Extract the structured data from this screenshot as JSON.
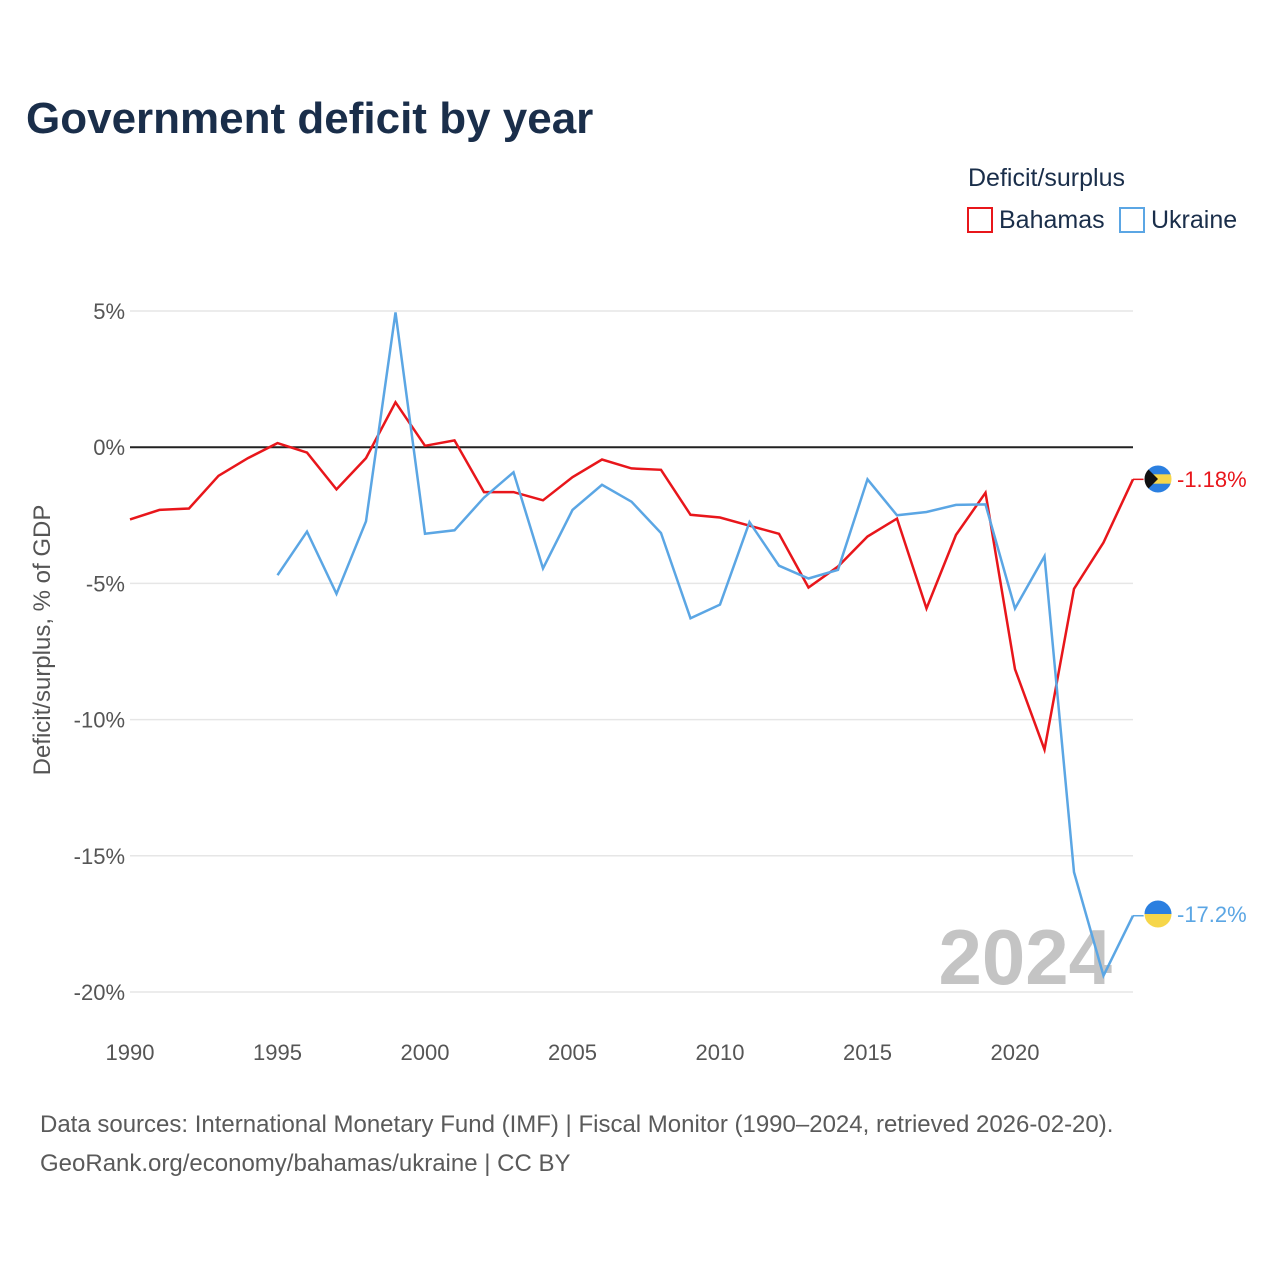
{
  "chart_data": {
    "type": "line",
    "title": "Government deficit by year",
    "legend": {
      "title": "Deficit/surplus",
      "position": "top-right",
      "entries": [
        {
          "name": "Bahamas",
          "color": "#e8161b"
        },
        {
          "name": "Ukraine",
          "color": "#5ba6e4"
        }
      ]
    },
    "ylabel": "Deficit/surplus, % of GDP",
    "xlabel": "",
    "xlim": [
      1990,
      2024
    ],
    "ylim": [
      -20,
      5
    ],
    "x_ticks": [
      {
        "value": 1990,
        "label": "1990"
      },
      {
        "value": 1995,
        "label": "1995"
      },
      {
        "value": 2000,
        "label": "2000"
      },
      {
        "value": 2005,
        "label": "2005"
      },
      {
        "value": 2010,
        "label": "2010"
      },
      {
        "value": 2015,
        "label": "2015"
      },
      {
        "value": 2020,
        "label": "2020"
      }
    ],
    "y_ticks": [
      {
        "value": 5,
        "label": "5%"
      },
      {
        "value": 0,
        "label": "0%"
      },
      {
        "value": -5,
        "label": "-5%"
      },
      {
        "value": -10,
        "label": "-10%"
      },
      {
        "value": -15,
        "label": "-15%"
      },
      {
        "value": -20,
        "label": "-20%"
      }
    ],
    "zero_line": true,
    "grid": true,
    "watermark_year": "2024",
    "series": [
      {
        "name": "Bahamas",
        "color": "#e8161b",
        "end_label": "-1.18%",
        "x": [
          1990,
          1991,
          1992,
          1993,
          1994,
          1995,
          1996,
          1997,
          1998,
          1999,
          2000,
          2001,
          2002,
          2003,
          2004,
          2005,
          2006,
          2007,
          2008,
          2009,
          2010,
          2011,
          2012,
          2013,
          2014,
          2015,
          2016,
          2017,
          2018,
          2019,
          2020,
          2021,
          2022,
          2023,
          2024
        ],
        "values": [
          -2.65,
          -2.3,
          -2.25,
          -1.05,
          -0.4,
          0.15,
          -0.2,
          -1.55,
          -0.4,
          1.65,
          0.05,
          0.25,
          -1.65,
          -1.65,
          -1.95,
          -1.1,
          -0.45,
          -0.78,
          -0.83,
          -2.48,
          -2.58,
          -2.88,
          -3.18,
          -5.15,
          -4.38,
          -3.28,
          -2.62,
          -5.92,
          -3.22,
          -1.67,
          -8.15,
          -11.1,
          -5.2,
          -3.5,
          -1.18
        ]
      },
      {
        "name": "Ukraine",
        "color": "#5ba6e4",
        "end_label": "-17.2%",
        "x": [
          1995,
          1996,
          1997,
          1998,
          1999,
          2000,
          2001,
          2002,
          2003,
          2004,
          2005,
          2006,
          2007,
          2008,
          2009,
          2010,
          2011,
          2012,
          2013,
          2014,
          2015,
          2016,
          2017,
          2018,
          2019,
          2020,
          2021,
          2022,
          2023,
          2024
        ],
        "values": [
          -4.7,
          -3.1,
          -5.38,
          -2.72,
          4.95,
          -3.18,
          -3.05,
          -1.85,
          -0.92,
          -4.45,
          -2.3,
          -1.38,
          -2.0,
          -3.15,
          -6.28,
          -5.78,
          -2.75,
          -4.35,
          -4.82,
          -4.5,
          -1.18,
          -2.5,
          -2.38,
          -2.12,
          -2.1,
          -5.92,
          -4.0,
          -15.6,
          -19.4,
          -17.2
        ]
      }
    ]
  },
  "source": {
    "line1": "Data sources: International Monetary Fund (IMF) | Fiscal Monitor (1990–2024, retrieved 2026-02-20).",
    "line2": "GeoRank.org/economy/bahamas/ukraine | CC BY"
  }
}
